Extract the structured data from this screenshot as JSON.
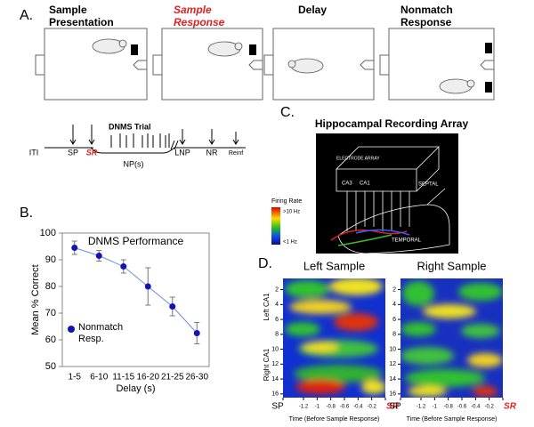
{
  "panel_a": {
    "label": "A.",
    "stages": [
      {
        "lines": [
          "Sample",
          "Presentation"
        ]
      },
      {
        "lines": [
          "Sample",
          "Response"
        ]
      },
      {
        "lines": [
          "Delay"
        ]
      },
      {
        "lines": [
          "Nonmatch",
          "Response"
        ]
      }
    ],
    "timeline": {
      "title": "DNMS Trial",
      "events": [
        "ITI",
        "SP",
        "SR",
        "NP(s)",
        "LNP",
        "NR",
        "Reinf"
      ]
    }
  },
  "chart_data": {
    "type": "line",
    "label": "B.",
    "title": "DNMS Performance",
    "xlabel": "Delay (s)",
    "ylabel": "Mean % Correct",
    "categories": [
      "1-5",
      "6-10",
      "11-15",
      "16-20",
      "21-25",
      "26-30"
    ],
    "series": [
      {
        "name": "Nonmatch Resp.",
        "color": "#1414b4",
        "line_color": "#6f8fd8",
        "values": [
          94.5,
          91.5,
          87.5,
          80,
          72.5,
          62.5
        ],
        "errors": [
          2.5,
          2,
          2.5,
          7,
          3.5,
          4
        ]
      }
    ],
    "ylim": [
      50,
      100
    ],
    "yticks": [
      50,
      60,
      70,
      80,
      90,
      100
    ]
  },
  "panel_c": {
    "label": "C.",
    "title": "Hippocampal Recording  Array",
    "array": "ELECTRODE ARRAY",
    "septal": "SEPTAL",
    "temporal": "TEMPORAL",
    "ca3": "CA3",
    "ca1": "CA1",
    "legend_title": "Firing Rate",
    "legend_high": ">10 Hz",
    "legend_low": "<1 Hz"
  },
  "panel_d": {
    "label": "D.",
    "titles": [
      "Left Sample",
      "Right Sample"
    ],
    "ylabels": [
      "Left CA1",
      "Right CA1"
    ],
    "ylim": [
      0.5,
      16.5
    ],
    "yticks": [
      2,
      4,
      6,
      8,
      10,
      12,
      14,
      16
    ],
    "xlim": [
      -1.5,
      0
    ],
    "xticks": [
      {
        "value": -1.5,
        "label": "SP"
      },
      -1.2,
      -1.0,
      -0.8,
      -0.6,
      -0.4,
      -0.2,
      {
        "value": 0,
        "label": "SR"
      }
    ],
    "xlabel": "Time (Before Sample Response)"
  }
}
